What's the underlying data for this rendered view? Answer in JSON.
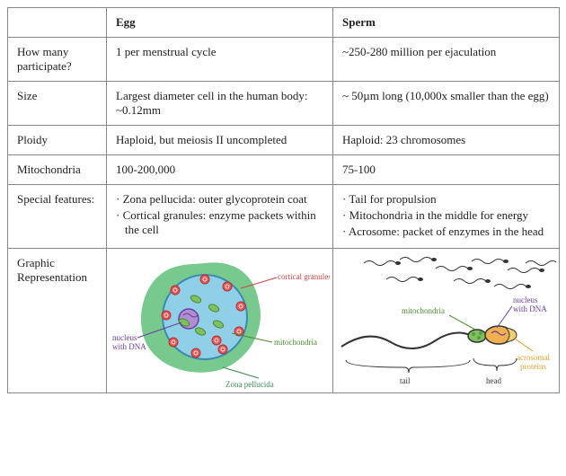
{
  "columns": [
    "",
    "Egg",
    "Sperm"
  ],
  "rows": [
    {
      "label": "How many participate?",
      "egg": "1 per menstrual cycle",
      "sperm": "~250-280 million per ejaculation"
    },
    {
      "label": "Size",
      "egg": "Largest diameter cell in the human body: ~0.12mm",
      "sperm": "~ 50µm long (10,000x smaller than the egg)"
    },
    {
      "label": "Ploidy",
      "egg": "Haploid, but meiosis II uncompleted",
      "sperm": "Haploid: 23 chromosomes"
    },
    {
      "label": "Mitochondria",
      "egg": "100-200,000",
      "sperm": "75-100"
    }
  ],
  "features_label": "Special features:",
  "egg_features": [
    "Zona pellucida: outer glycoprotein coat",
    "Cortical granules: enzyme packets within the cell"
  ],
  "sperm_features": [
    "Tail for propulsion",
    "Mitochondria in the middle for energy",
    "Acrosome: packet of enzymes in the head"
  ],
  "graphic_label": "Graphic Representation",
  "egg_graphic": {
    "zona_color": "#5fbf7a",
    "cyto_color": "#8fd0e8",
    "membrane_color": "#3b8bb0",
    "nucleus_fill": "#b08fd0",
    "nucleus_stroke": "#6a3fa0",
    "granule_fill": "#e85a5a",
    "granule_stroke": "#b03030",
    "mito_fill": "#7fc060",
    "mito_stroke": "#4a8a30",
    "label_color_granule": "#d04545",
    "label_color_mito": "#4a8a30",
    "label_color_zona": "#3a8a55",
    "label_color_nucleus": "#6a3fa0",
    "labels": {
      "cortical": "cortical granules",
      "mito": "mitochondria",
      "zona": "Zona pellucida",
      "nucleus": "nucleus\nwith DNA"
    }
  },
  "sperm_graphic": {
    "outline": "#333",
    "head_fill": "#f0b050",
    "mid_fill": "#7fc060",
    "acro_fill": "#f0d070",
    "label_mito": "#4a8a30",
    "label_nucleus": "#6a3fa0",
    "label_acro": "#e0a030",
    "brace_color": "#333",
    "labels": {
      "mito": "mitochondria",
      "nucleus": "nucleus\nwith DNA",
      "acro": "acrosomal\nproteins",
      "tail": "tail",
      "head": "head"
    }
  }
}
